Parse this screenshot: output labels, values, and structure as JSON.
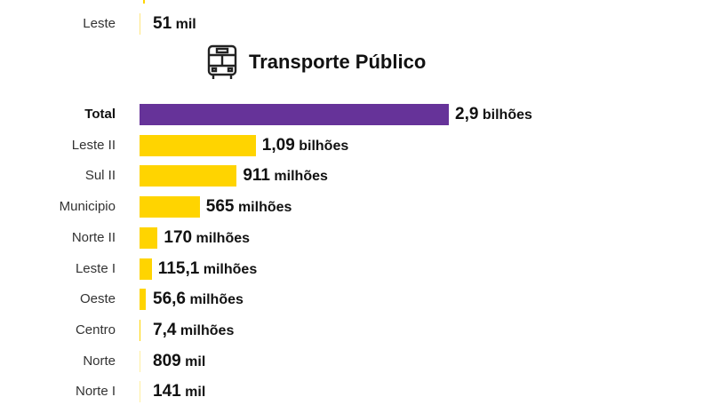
{
  "colors": {
    "total": "#663399",
    "region": "#FFD400"
  },
  "previous_section": {
    "category": "Leste",
    "value_num": "51",
    "value_unit": "mil",
    "value": 5.1e-05
  },
  "chart_data": {
    "type": "bar",
    "orientation": "horizontal",
    "title": "Transporte Público",
    "title_icon": "bus-icon",
    "unit": "billions",
    "categories": [
      "Total",
      "Leste II",
      "Sul II",
      "Municipio",
      "Norte II",
      "Leste I",
      "Oeste",
      "Centro",
      "Norte",
      "Norte I"
    ],
    "values": [
      2.9,
      1.09,
      0.911,
      0.565,
      0.17,
      0.1151,
      0.0566,
      0.0074,
      0.000809,
      0.000141
    ],
    "labels": [
      {
        "num": "2,9",
        "unit": "bilhões"
      },
      {
        "num": "1,09",
        "unit": "bilhões"
      },
      {
        "num": "911",
        "unit": "milhões"
      },
      {
        "num": "565",
        "unit": "milhões"
      },
      {
        "num": "170",
        "unit": "milhões"
      },
      {
        "num": "115,1",
        "unit": "milhões"
      },
      {
        "num": "56,6",
        "unit": "milhões"
      },
      {
        "num": "7,4",
        "unit": "milhões"
      },
      {
        "num": "809",
        "unit": "mil"
      },
      {
        "num": "141",
        "unit": "mil"
      }
    ]
  }
}
